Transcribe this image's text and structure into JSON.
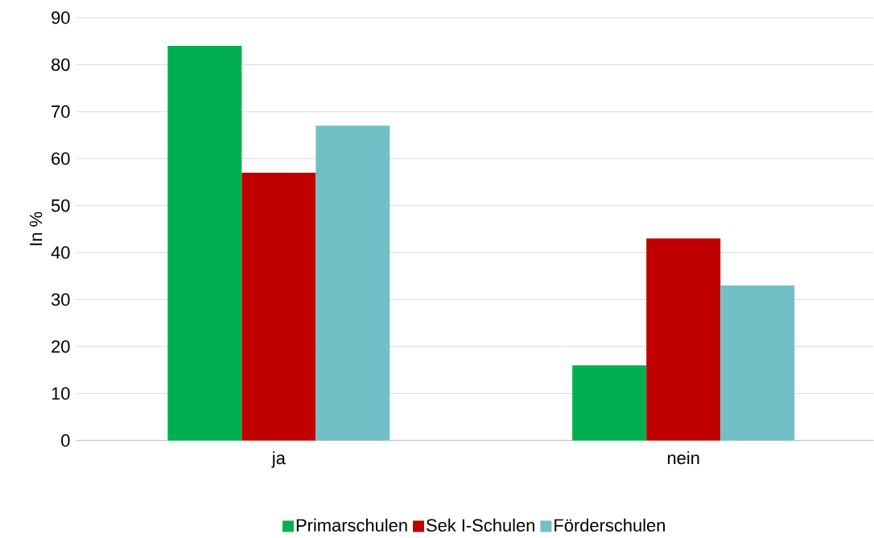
{
  "chart_data": {
    "type": "bar",
    "ylabel": "In %",
    "categories": [
      "ja",
      "nein"
    ],
    "series": [
      {
        "name": "Primarschulen",
        "color": "#00b050",
        "values": [
          84,
          16
        ]
      },
      {
        "name": "Sek I-Schulen",
        "color": "#c00000",
        "values": [
          57,
          43
        ]
      },
      {
        "name": "Förderschulen",
        "color": "#72bfc6",
        "values": [
          67,
          33
        ]
      }
    ],
    "ylim": [
      0,
      90
    ],
    "yticks": [
      0,
      10,
      20,
      30,
      40,
      50,
      60,
      70,
      80,
      90
    ],
    "grid": "y",
    "legend": "bottom"
  }
}
